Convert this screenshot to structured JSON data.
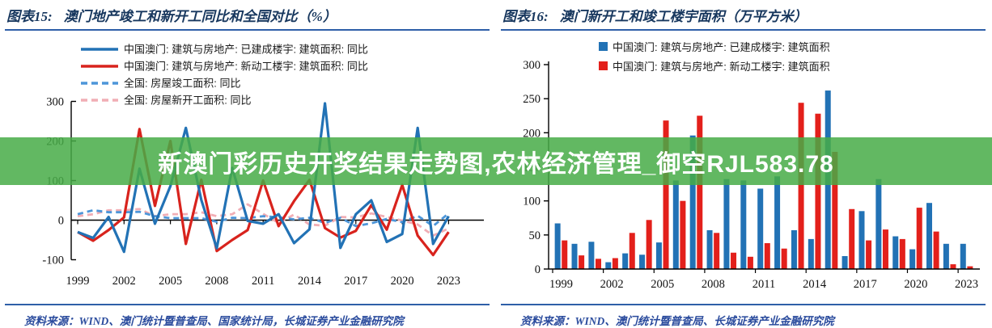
{
  "banner": {
    "text": "新澳门彩历史开奖结果走势图,农林经济管理_御空RJL583.78",
    "bg_color": "#46AB46",
    "text_color": "#FFFFFF"
  },
  "panels": [
    {
      "title_prefix": "图表15:",
      "title": "澳门地产竣工和新开工同比和全国对比（%）",
      "source_label": "资料来源：",
      "source": "WIND、澳门统计暨普查局、国家统计局，长城证券产业金融研究院"
    },
    {
      "title_prefix": "图表16:",
      "title": "澳门新开工和竣工楼宇面积（万平方米）",
      "source_label": "资料来源：",
      "source": "WIND、澳门统计暨普查局、长城证券产业金融研究院"
    }
  ],
  "colors": {
    "title_text": "#17375E",
    "rule_blue": "#2E5FA8",
    "source_text": "#2A4B9D",
    "axis": "#000000",
    "macau_blue": "#2272B5",
    "macau_red": "#D8231D",
    "bar_red": "#E3201B",
    "national_blue_dashed": "#4D96D9",
    "national_pink_dashed": "#F1AEB5"
  },
  "chart_data": [
    {
      "type": "line",
      "title": "澳门地产竣工和新开工同比和全国对比（%）",
      "x": [
        1999,
        2000,
        2001,
        2002,
        2003,
        2004,
        2005,
        2006,
        2007,
        2008,
        2009,
        2010,
        2011,
        2012,
        2013,
        2014,
        2015,
        2016,
        2017,
        2018,
        2019,
        2020,
        2021,
        2022,
        2023
      ],
      "x_tick_labels": [
        "1999",
        "2002",
        "2005",
        "2008",
        "2011",
        "2014",
        "2017",
        "2020",
        "2023"
      ],
      "ylim": [
        -100,
        300
      ],
      "yticks": [
        300,
        200,
        100,
        0,
        -100
      ],
      "grid": false,
      "legend_position": "top-left",
      "series": [
        {
          "name": "中国澳门: 建筑与房地产: 已建成楼宇: 建筑面积: 同比",
          "color": "#2272B5",
          "dash": false,
          "values": [
            -30,
            -45,
            8,
            -80,
            130,
            -9,
            86,
            233,
            51,
            -71,
            132,
            -2,
            -9,
            15,
            -58,
            -23,
            295,
            -70,
            15,
            50,
            -55,
            -35,
            233,
            -60,
            10
          ]
        },
        {
          "name": "中国澳门: 建筑与房地产: 新动工楼宇: 建筑面积: 同比",
          "color": "#D8231D",
          "dash": false,
          "values": [
            -30,
            -52,
            -25,
            7,
            230,
            36,
            200,
            -60,
            102,
            -78,
            -50,
            -25,
            100,
            -15,
            48,
            102,
            -20,
            -44,
            -27,
            38,
            -24,
            89,
            -39,
            -88,
            -30
          ]
        },
        {
          "name": "全国: 房屋竣工面积: 同比",
          "color": "#4D96D9",
          "dash": true,
          "values": [
            15,
            25,
            20,
            20,
            21,
            10,
            5,
            5,
            5,
            -4,
            6,
            5,
            10,
            7,
            2,
            6,
            -7,
            6,
            -15,
            -8,
            3,
            -5,
            11,
            -15,
            17
          ]
        },
        {
          "name": "全国: 房屋新开工面积: 同比",
          "color": "#F1AEB5",
          "dash": true,
          "values": [
            10,
            15,
            25,
            25,
            28,
            10,
            15,
            15,
            20,
            10,
            15,
            40,
            16,
            -7,
            14,
            -11,
            -14,
            8,
            7,
            17,
            8,
            -1,
            -11,
            -39,
            -21
          ]
        }
      ]
    },
    {
      "type": "bar",
      "title": "澳门新开工和竣工楼宇面积（万平方米）",
      "categories": [
        1999,
        2000,
        2001,
        2002,
        2003,
        2004,
        2005,
        2006,
        2007,
        2008,
        2009,
        2010,
        2011,
        2012,
        2013,
        2014,
        2015,
        2016,
        2017,
        2018,
        2019,
        2020,
        2021,
        2022,
        2023
      ],
      "x_tick_labels": [
        "1999",
        "2002",
        "2005",
        "2008",
        "2011",
        "2014",
        "2017",
        "2020",
        "2023"
      ],
      "ylim": [
        0,
        300
      ],
      "yticks": [
        0,
        50,
        100,
        150,
        200,
        250,
        300
      ],
      "grid": false,
      "legend_position": "top-center",
      "series": [
        {
          "name": "中国澳门: 建筑与房地产: 已建成楼宇: 建筑面积",
          "color": "#2272B5",
          "values": [
            67,
            37,
            40,
            10,
            23,
            21,
            39,
            130,
            196,
            57,
            132,
            130,
            118,
            136,
            57,
            44,
            262,
            19,
            85,
            132,
            48,
            29,
            97,
            37,
            37
          ]
        },
        {
          "name": "中国澳门: 建筑与房地产: 新动工楼宇: 建筑面积",
          "color": "#E3201B",
          "values": [
            42,
            20,
            15,
            16,
            53,
            72,
            218,
            100,
            225,
            53,
            24,
            18,
            38,
            30,
            244,
            228,
            172,
            88,
            42,
            58,
            44,
            90,
            55,
            7,
            4
          ]
        }
      ]
    }
  ]
}
